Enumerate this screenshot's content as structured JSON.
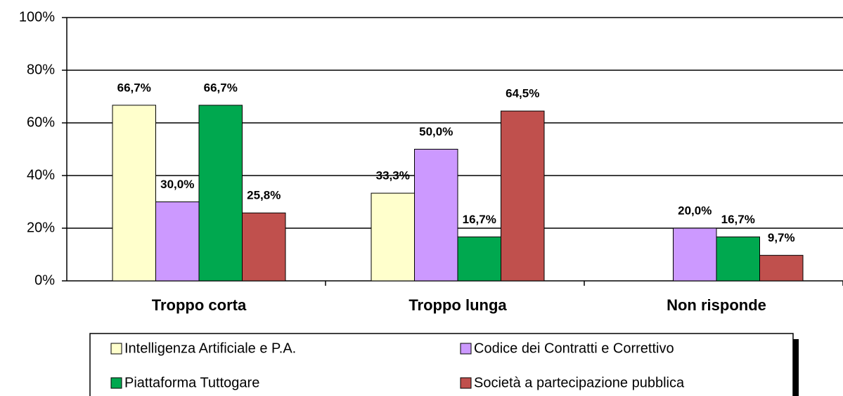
{
  "chart_data": {
    "type": "bar",
    "categories": [
      "Troppo corta",
      "Troppo lunga",
      "Non risponde"
    ],
    "series": [
      {
        "name": "Intelligenza Artificiale e P.A.",
        "color": "#ffffcc",
        "values": [
          66.7,
          33.3,
          null
        ],
        "value_labels": [
          "66,7%",
          "33,3%",
          null
        ]
      },
      {
        "name": "Codice dei Contratti e Correttivo",
        "color": "#cc99ff",
        "values": [
          30.0,
          50.0,
          20.0
        ],
        "value_labels": [
          "30,0%",
          "50,0%",
          "20,0%"
        ]
      },
      {
        "name": "Piattaforma Tuttogare",
        "color": "#00a84f",
        "values": [
          66.7,
          16.7,
          16.7
        ],
        "value_labels": [
          "66,7%",
          "16,7%",
          "16,7%"
        ]
      },
      {
        "name": "Società a partecipazione pubblica",
        "color": "#c0504d",
        "values": [
          25.8,
          64.5,
          9.7
        ],
        "value_labels": [
          "25,8%",
          "64,5%",
          "9,7%"
        ]
      }
    ],
    "ylim": [
      0,
      100
    ],
    "yticks": [
      {
        "value": 0,
        "label": "0%"
      },
      {
        "value": 20,
        "label": "20%"
      },
      {
        "value": 40,
        "label": "40%"
      },
      {
        "value": 60,
        "label": "60%"
      },
      {
        "value": 80,
        "label": "80%"
      },
      {
        "value": 100,
        "label": "100%"
      }
    ],
    "grid": true
  }
}
